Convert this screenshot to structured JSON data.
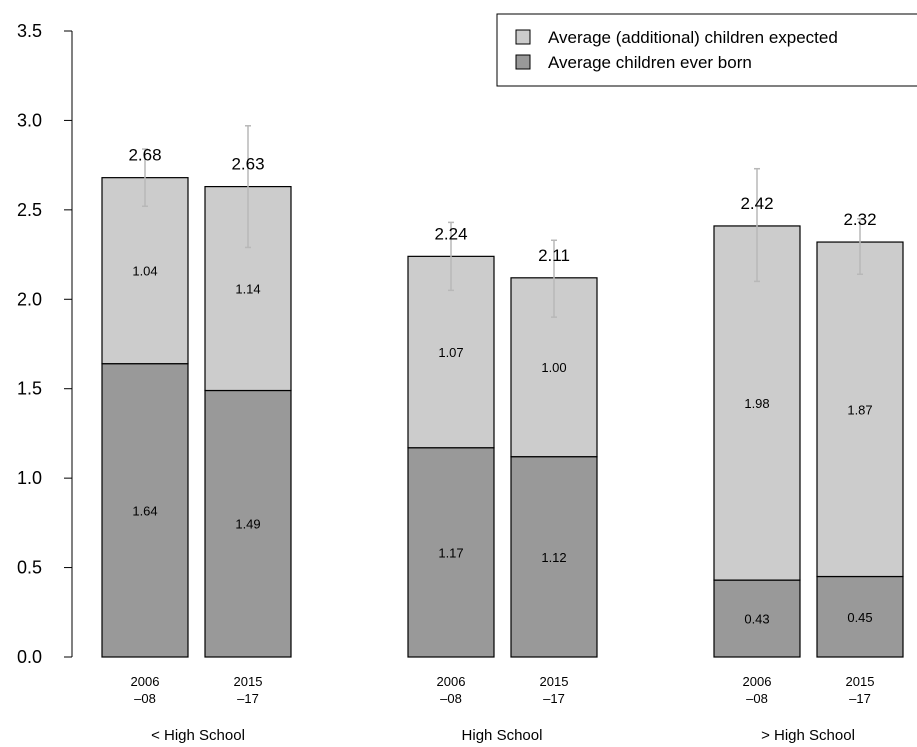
{
  "chart_data": {
    "type": "bar",
    "stacked": true,
    "title": "",
    "xlabel": "",
    "ylabel": "",
    "ylim": [
      0,
      3.5
    ],
    "yticks": [
      "0.0",
      "0.5",
      "1.0",
      "1.5",
      "2.0",
      "2.5",
      "3.0",
      "3.5"
    ],
    "grid": false,
    "legend_position": "top-right",
    "colors": {
      "expected": "#cccccc",
      "born": "#999999",
      "error_bar": "#b8b8b8",
      "outline": "#000000"
    },
    "series": [
      {
        "key": "born",
        "name": "Average children ever born",
        "values": [
          1.64,
          1.49,
          1.17,
          1.12,
          0.43,
          0.45
        ]
      },
      {
        "key": "expected",
        "name": "Average (additional) children expected",
        "values": [
          1.04,
          1.14,
          1.07,
          1.0,
          1.98,
          1.87
        ]
      }
    ],
    "legend": [
      {
        "key": "expected",
        "label": "Average (additional) children expected"
      },
      {
        "key": "born",
        "label": "Average children ever born"
      }
    ],
    "groups": [
      {
        "label": "< High School",
        "bars": [
          0,
          1
        ]
      },
      {
        "label": "High School",
        "bars": [
          2,
          3
        ]
      },
      {
        "label": "> High School",
        "bars": [
          4,
          5
        ]
      }
    ],
    "bars": [
      {
        "period_line1": "2006",
        "period_line2": "–08",
        "total_label": "2.68",
        "born_label": "1.64",
        "expected_label": "1.04",
        "total": 2.68,
        "error_low": 2.52,
        "error_high": 2.84
      },
      {
        "period_line1": "2015",
        "period_line2": "–17",
        "total_label": "2.63",
        "born_label": "1.49",
        "expected_label": "1.14",
        "total": 2.63,
        "error_low": 2.29,
        "error_high": 2.97
      },
      {
        "period_line1": "2006",
        "period_line2": "–08",
        "total_label": "2.24",
        "born_label": "1.17",
        "expected_label": "1.07",
        "total": 2.24,
        "error_low": 2.05,
        "error_high": 2.43
      },
      {
        "period_line1": "2015",
        "period_line2": "–17",
        "total_label": "2.11",
        "born_label": "1.12",
        "expected_label": "1.00",
        "total": 2.11,
        "error_low": 1.9,
        "error_high": 2.33
      },
      {
        "period_line1": "2006",
        "period_line2": "–08",
        "total_label": "2.42",
        "born_label": "0.43",
        "expected_label": "1.98",
        "total": 2.42,
        "error_low": 2.1,
        "error_high": 2.73
      },
      {
        "period_line1": "2015",
        "period_line2": "–17",
        "total_label": "2.32",
        "born_label": "0.45",
        "expected_label": "1.87",
        "total": 2.32,
        "error_low": 2.14,
        "error_high": 2.45
      }
    ]
  }
}
